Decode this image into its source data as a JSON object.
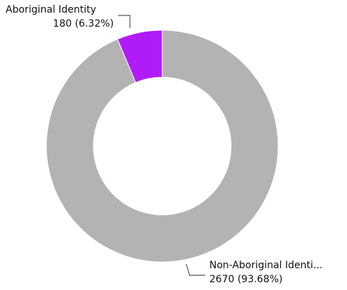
{
  "chart_data": {
    "type": "pie",
    "categories": [
      "Aboriginal Identity",
      "Non-Aboriginal Identi..."
    ],
    "values": [
      180,
      2670
    ],
    "value_labels": [
      "180 (6.32%)",
      "2670 (93.68%)"
    ],
    "colors": [
      "#b01cf8",
      "#b3b3b3"
    ],
    "donut": true
  }
}
